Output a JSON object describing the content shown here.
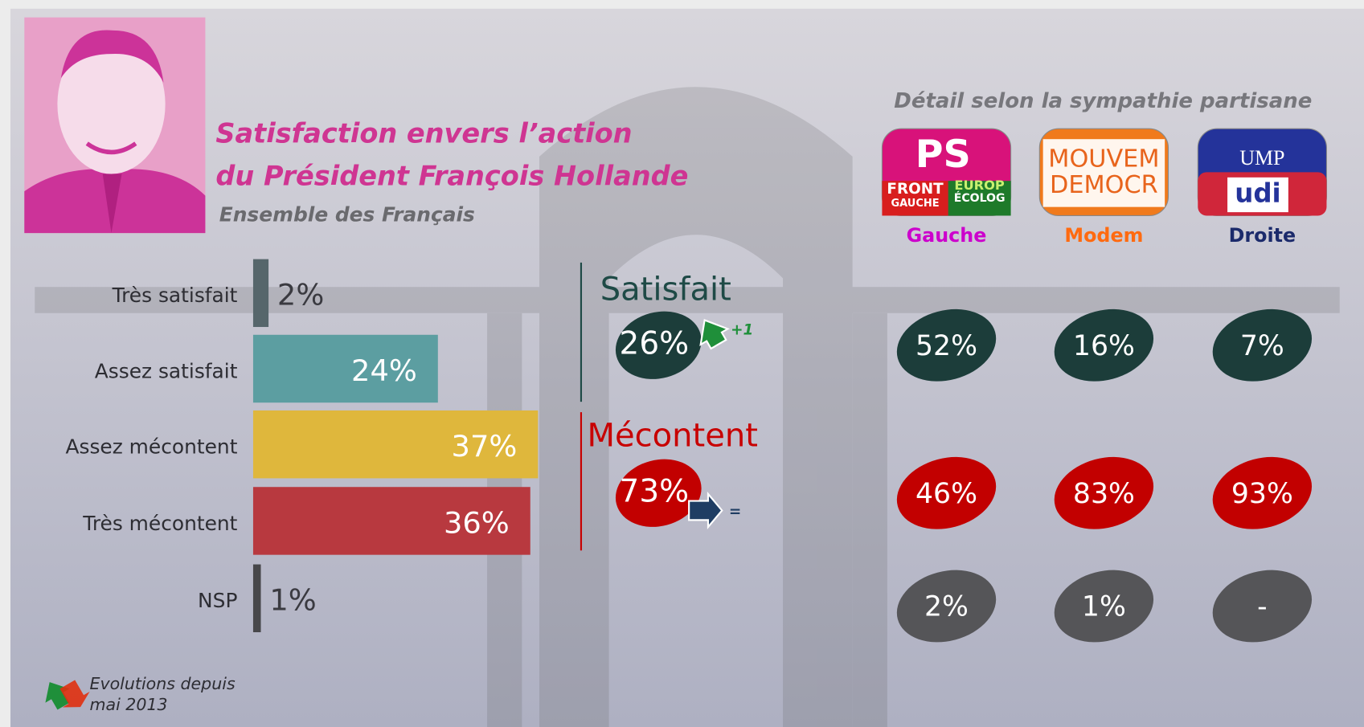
{
  "title_lines": [
    "Satisfaction envers l’action",
    "du Président François Hollande"
  ],
  "subtitle": "Ensemble des Français",
  "chart_data": {
    "type": "bar",
    "orientation": "horizontal",
    "categories": [
      "Très satisfait",
      "Assez satisfait",
      "Assez mécontent",
      "Très mécontent",
      "NSP"
    ],
    "values": [
      2,
      24,
      37,
      36,
      1
    ],
    "value_labels": [
      "2%",
      "24%",
      "37%",
      "36%",
      "1%"
    ],
    "colors": [
      "#56666b",
      "#5c9ea1",
      "#dfb73c",
      "#b8393f",
      "#47474a"
    ]
  },
  "summary": [
    {
      "name": "Satisfait",
      "value": 26,
      "value_label": "26%",
      "evolution": "+1",
      "color": "#1c3d3a",
      "name_color": "#1e4a46"
    },
    {
      "name": "Mécontent",
      "value": 73,
      "value_label": "73%",
      "evolution": "=",
      "color": "#c20000",
      "name_color": "#c80000"
    }
  ],
  "party_detail": {
    "heading": "Détail selon  la sympathie partisane",
    "parties": [
      {
        "name": "Gauche",
        "color": "#cc00cc",
        "logo": [
          "PS",
          "FRONT",
          "GAUCHE",
          "EUROP",
          "ÉCOLOG"
        ]
      },
      {
        "name": "Modem",
        "color": "#ff6a10",
        "logo": [
          "MOUVEM",
          "DEMOCR"
        ]
      },
      {
        "name": "Droite",
        "color": "#1b2a6b",
        "logo": [
          "UMP",
          "udi"
        ]
      }
    ],
    "rows": [
      {
        "values": [
          52,
          16,
          7
        ],
        "value_labels": [
          "52%",
          "16%",
          "7%"
        ],
        "color": "#1c3d3a"
      },
      {
        "values": [
          46,
          83,
          93
        ],
        "value_labels": [
          "46%",
          "83%",
          "93%"
        ],
        "color": "#c20000"
      },
      {
        "values": [
          2,
          1,
          null
        ],
        "value_labels": [
          "2%",
          "1%",
          "-"
        ],
        "color": "#555558"
      }
    ]
  },
  "legend_note": [
    "Evolutions depuis",
    "mai 2013"
  ]
}
